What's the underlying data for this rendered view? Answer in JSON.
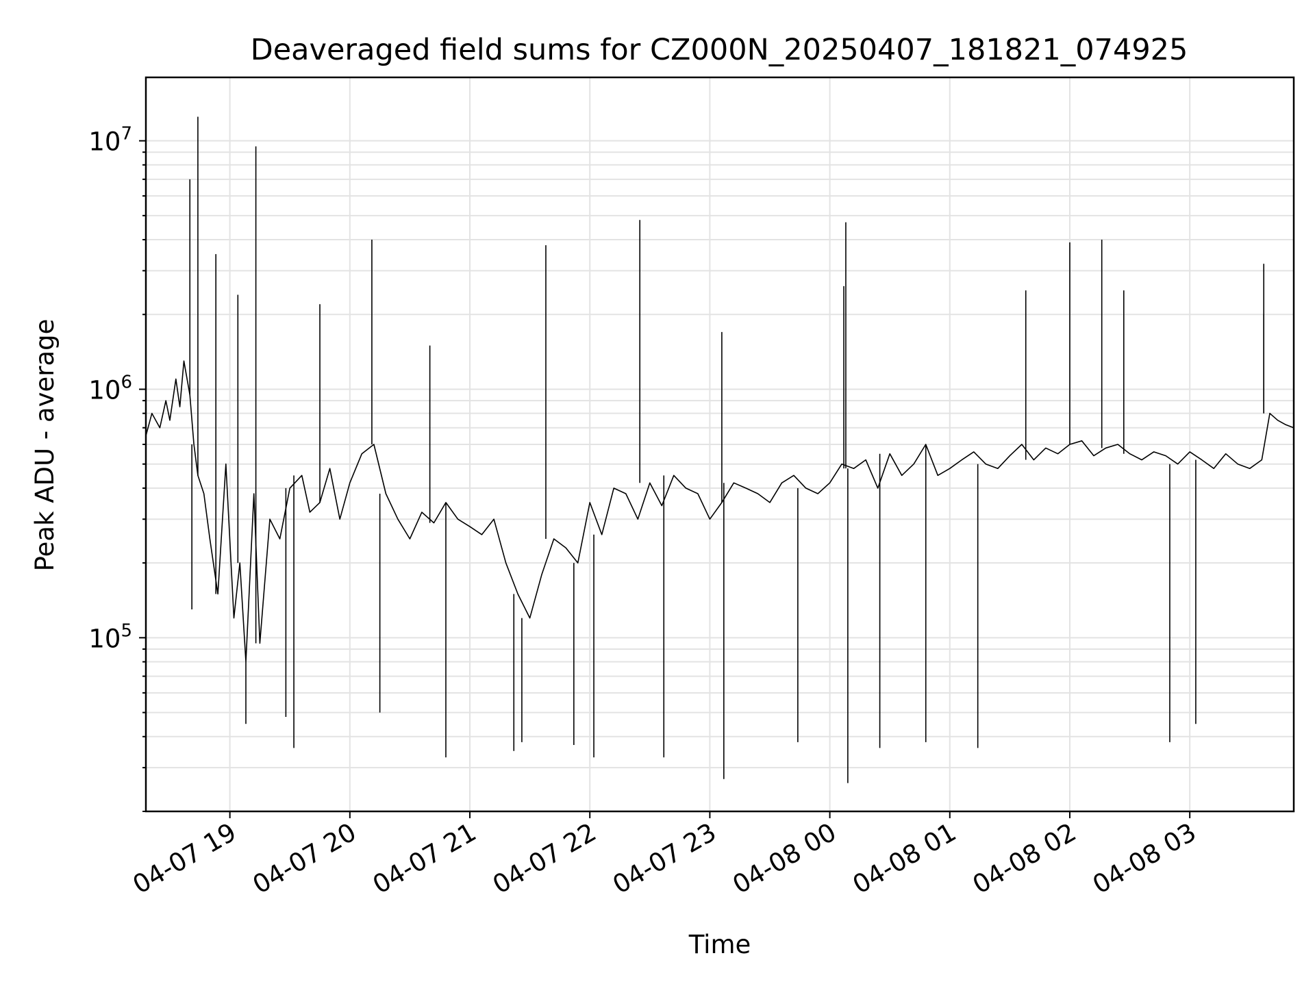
{
  "chart_data": {
    "type": "line",
    "title": "Deaveraged field sums for CZ000N_20250407_181821_074925",
    "xlabel": "Time",
    "ylabel": "Peak ADU - average",
    "y_scale": "log",
    "ylim": [
      20000,
      18000000
    ],
    "xlim": [
      "2025-04-07 18:18",
      "2025-04-08 03:52"
    ],
    "grid": true,
    "line_color": "#000000",
    "x_ticks": [
      {
        "value": "2025-04-07 19:00",
        "label": "04-07 19"
      },
      {
        "value": "2025-04-07 20:00",
        "label": "04-07 20"
      },
      {
        "value": "2025-04-07 21:00",
        "label": "04-07 21"
      },
      {
        "value": "2025-04-07 22:00",
        "label": "04-07 22"
      },
      {
        "value": "2025-04-07 23:00",
        "label": "04-07 23"
      },
      {
        "value": "2025-04-08 00:00",
        "label": "04-08 00"
      },
      {
        "value": "2025-04-08 01:00",
        "label": "04-08 01"
      },
      {
        "value": "2025-04-08 02:00",
        "label": "04-08 02"
      },
      {
        "value": "2025-04-08 03:00",
        "label": "04-08 03"
      }
    ],
    "y_ticks": [
      {
        "value": 100000,
        "base": "10",
        "exp": "5"
      },
      {
        "value": 1000000,
        "base": "10",
        "exp": "6"
      },
      {
        "value": 10000000,
        "base": "10",
        "exp": "7"
      }
    ],
    "series": [
      {
        "x": [
          "2025-04-07 18:18",
          "2025-04-07 18:21",
          "2025-04-07 18:25",
          "2025-04-07 18:28",
          "2025-04-07 18:30",
          "2025-04-07 18:33",
          "2025-04-07 18:35",
          "2025-04-07 18:37",
          "2025-04-07 18:40",
          "2025-04-07 18:42",
          "2025-04-07 18:44",
          "2025-04-07 18:47",
          "2025-04-07 18:50",
          "2025-04-07 18:54",
          "2025-04-07 18:58",
          "2025-04-07 19:02",
          "2025-04-07 19:05",
          "2025-04-07 19:08",
          "2025-04-07 19:12",
          "2025-04-07 19:15",
          "2025-04-07 19:20",
          "2025-04-07 19:25",
          "2025-04-07 19:30",
          "2025-04-07 19:36",
          "2025-04-07 19:40",
          "2025-04-07 19:45",
          "2025-04-07 19:50",
          "2025-04-07 19:55",
          "2025-04-07 20:00",
          "2025-04-07 20:06",
          "2025-04-07 20:12",
          "2025-04-07 20:18",
          "2025-04-07 20:24",
          "2025-04-07 20:30",
          "2025-04-07 20:36",
          "2025-04-07 20:42",
          "2025-04-07 20:48",
          "2025-04-07 20:54",
          "2025-04-07 21:00",
          "2025-04-07 21:06",
          "2025-04-07 21:12",
          "2025-04-07 21:18",
          "2025-04-07 21:24",
          "2025-04-07 21:30",
          "2025-04-07 21:36",
          "2025-04-07 21:42",
          "2025-04-07 21:48",
          "2025-04-07 21:54",
          "2025-04-07 22:00",
          "2025-04-07 22:06",
          "2025-04-07 22:12",
          "2025-04-07 22:18",
          "2025-04-07 22:24",
          "2025-04-07 22:30",
          "2025-04-07 22:36",
          "2025-04-07 22:42",
          "2025-04-07 22:48",
          "2025-04-07 22:54",
          "2025-04-07 23:00",
          "2025-04-07 23:06",
          "2025-04-07 23:12",
          "2025-04-07 23:18",
          "2025-04-07 23:24",
          "2025-04-07 23:30",
          "2025-04-07 23:36",
          "2025-04-07 23:42",
          "2025-04-07 23:48",
          "2025-04-07 23:54",
          "2025-04-08 00:00",
          "2025-04-08 00:06",
          "2025-04-08 00:12",
          "2025-04-08 00:18",
          "2025-04-08 00:24",
          "2025-04-08 00:30",
          "2025-04-08 00:36",
          "2025-04-08 00:42",
          "2025-04-08 00:48",
          "2025-04-08 00:54",
          "2025-04-08 01:00",
          "2025-04-08 01:06",
          "2025-04-08 01:12",
          "2025-04-08 01:18",
          "2025-04-08 01:24",
          "2025-04-08 01:30",
          "2025-04-08 01:36",
          "2025-04-08 01:42",
          "2025-04-08 01:48",
          "2025-04-08 01:54",
          "2025-04-08 02:00",
          "2025-04-08 02:06",
          "2025-04-08 02:12",
          "2025-04-08 02:18",
          "2025-04-08 02:24",
          "2025-04-08 02:30",
          "2025-04-08 02:36",
          "2025-04-08 02:42",
          "2025-04-08 02:48",
          "2025-04-08 02:54",
          "2025-04-08 03:00",
          "2025-04-08 03:06",
          "2025-04-08 03:12",
          "2025-04-08 03:18",
          "2025-04-08 03:24",
          "2025-04-08 03:30",
          "2025-04-08 03:36",
          "2025-04-08 03:40",
          "2025-04-08 03:44",
          "2025-04-08 03:48",
          "2025-04-08 03:52"
        ],
        "y": [
          650000,
          800000,
          700000,
          900000,
          750000,
          1100000,
          850000,
          1300000,
          950000,
          600000,
          450000,
          380000,
          250000,
          150000,
          500000,
          120000,
          200000,
          80000,
          380000,
          95000,
          300000,
          250000,
          400000,
          450000,
          320000,
          350000,
          480000,
          300000,
          420000,
          550000,
          600000,
          380000,
          300000,
          250000,
          320000,
          290000,
          350000,
          300000,
          280000,
          260000,
          300000,
          200000,
          150000,
          120000,
          180000,
          250000,
          230000,
          200000,
          350000,
          260000,
          400000,
          380000,
          300000,
          420000,
          340000,
          450000,
          400000,
          380000,
          300000,
          350000,
          420000,
          400000,
          380000,
          350000,
          420000,
          450000,
          400000,
          380000,
          420000,
          500000,
          480000,
          520000,
          400000,
          550000,
          450000,
          500000,
          600000,
          450000,
          480000,
          520000,
          560000,
          500000,
          480000,
          540000,
          600000,
          520000,
          580000,
          550000,
          600000,
          620000,
          540000,
          580000,
          600000,
          550000,
          520000,
          560000,
          540000,
          500000,
          560000,
          520000,
          480000,
          550000,
          500000,
          480000,
          520000,
          800000,
          750000,
          720000,
          700000
        ]
      }
    ],
    "spikes": [
      {
        "x": "2025-04-07 18:40",
        "y": 7000000
      },
      {
        "x": "2025-04-07 18:41",
        "y": 130000
      },
      {
        "x": "2025-04-07 18:44",
        "y": 12500000
      },
      {
        "x": "2025-04-07 18:53",
        "y": 3500000
      },
      {
        "x": "2025-04-07 19:04",
        "y": 2400000
      },
      {
        "x": "2025-04-07 19:08",
        "y": 45000
      },
      {
        "x": "2025-04-07 19:13",
        "y": 9500000
      },
      {
        "x": "2025-04-07 19:28",
        "y": 48000
      },
      {
        "x": "2025-04-07 19:32",
        "y": 36000
      },
      {
        "x": "2025-04-07 19:45",
        "y": 2200000
      },
      {
        "x": "2025-04-07 20:11",
        "y": 4000000
      },
      {
        "x": "2025-04-07 20:15",
        "y": 50000
      },
      {
        "x": "2025-04-07 20:40",
        "y": 1500000
      },
      {
        "x": "2025-04-07 20:48",
        "y": 33000
      },
      {
        "x": "2025-04-07 21:22",
        "y": 35000
      },
      {
        "x": "2025-04-07 21:26",
        "y": 38000
      },
      {
        "x": "2025-04-07 21:38",
        "y": 3800000
      },
      {
        "x": "2025-04-07 21:52",
        "y": 37000
      },
      {
        "x": "2025-04-07 22:02",
        "y": 33000
      },
      {
        "x": "2025-04-07 22:25",
        "y": 4800000
      },
      {
        "x": "2025-04-07 22:37",
        "y": 33000
      },
      {
        "x": "2025-04-07 23:06",
        "y": 1700000
      },
      {
        "x": "2025-04-07 23:07",
        "y": 27000
      },
      {
        "x": "2025-04-07 23:44",
        "y": 38000
      },
      {
        "x": "2025-04-08 00:07",
        "y": 2600000
      },
      {
        "x": "2025-04-08 00:08",
        "y": 4700000
      },
      {
        "x": "2025-04-08 00:09",
        "y": 26000
      },
      {
        "x": "2025-04-08 00:25",
        "y": 36000
      },
      {
        "x": "2025-04-08 00:48",
        "y": 38000
      },
      {
        "x": "2025-04-08 01:14",
        "y": 36000
      },
      {
        "x": "2025-04-08 01:38",
        "y": 2500000
      },
      {
        "x": "2025-04-08 02:00",
        "y": 3900000
      },
      {
        "x": "2025-04-08 02:16",
        "y": 4000000
      },
      {
        "x": "2025-04-08 02:27",
        "y": 2500000
      },
      {
        "x": "2025-04-08 02:50",
        "y": 38000
      },
      {
        "x": "2025-04-08 03:03",
        "y": 45000
      },
      {
        "x": "2025-04-08 03:37",
        "y": 2000000
      },
      {
        "x": "2025-04-08 03:37",
        "y": 3200000
      }
    ]
  }
}
